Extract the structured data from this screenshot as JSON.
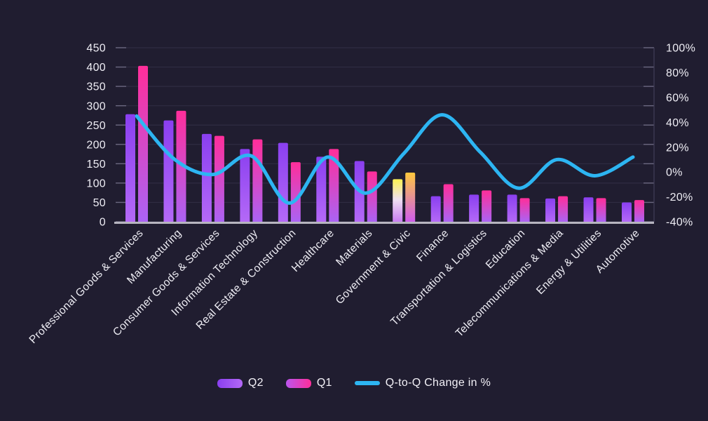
{
  "legend": {
    "q2": "Q2",
    "q1": "Q1",
    "line": "Q-to-Q Change in %"
  },
  "chart_data": {
    "type": "combo-bar-line",
    "categories": [
      "Professional Goods & Services",
      "Manufacturing",
      "Consumer Goods & Services",
      "Information Technology",
      "Real Estate & Construction",
      "Healthcare",
      "Materials",
      "Government & Civic",
      "Finance",
      "Transportation & Logistics",
      "Education",
      "Telecommunications & Media",
      "Energy & Utilities",
      "Automotive"
    ],
    "series": [
      {
        "name": "Q2",
        "type": "bar",
        "axis": "left",
        "values": [
          278,
          262,
          227,
          188,
          204,
          168,
          157,
          110,
          66,
          70,
          70,
          60,
          63,
          50
        ]
      },
      {
        "name": "Q1",
        "type": "bar",
        "axis": "left",
        "values": [
          403,
          287,
          222,
          213,
          154,
          188,
          130,
          127,
          97,
          81,
          61,
          66,
          61,
          56
        ]
      },
      {
        "name": "Q-to-Q Change in %",
        "type": "line",
        "axis": "right",
        "values": [
          45,
          10,
          -2,
          13,
          -25,
          12,
          -17,
          15,
          46,
          16,
          -13,
          10,
          -3,
          12
        ]
      }
    ],
    "left_axis": {
      "labels": [
        "450",
        "400",
        "350",
        "300",
        "250",
        "200",
        "150",
        "100",
        "50",
        "0"
      ],
      "range": [
        0,
        450
      ]
    },
    "right_axis": {
      "labels": [
        "100%",
        "80%",
        "60%",
        "40%",
        "20%",
        "0%",
        "-20%",
        "-40%"
      ],
      "range": [
        -40,
        100
      ]
    },
    "highlight_index": 7,
    "grid": true,
    "legend_position": "bottom",
    "colors": {
      "background": "#201d30",
      "grid": "#2f2c42",
      "tick": "#6b6880",
      "axis_bottom": "#b7b5c0",
      "axis_right": "#413e58",
      "text": "#eeedf4",
      "q2_top": "#8a3ff0",
      "q2_bottom": "#b469f7",
      "q1_top": "#ff2e9a",
      "q1_bottom": "#ab63f4",
      "hl_q2_top": "#fcf251",
      "hl_q2_mid": "#efe0f2",
      "hl_q2_bottom": "#c97cf2",
      "hl_q1_top": "#ffc83d",
      "hl_q1_bottom": "#cf5ced",
      "line": "#2db5f2"
    }
  }
}
